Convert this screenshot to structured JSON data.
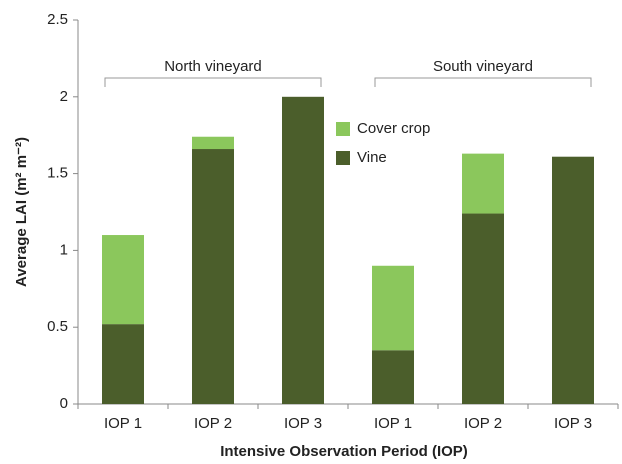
{
  "chart_data": {
    "type": "stacked_bar",
    "x_label": "Intensive Observation Period (IOP)",
    "y_label": "Average LAI (m² m⁻²)",
    "categories": [
      "IOP 1",
      "IOP 2",
      "IOP 3",
      "IOP 1",
      "IOP 2",
      "IOP 3"
    ],
    "series": [
      {
        "name": "Vine",
        "color": "#4b5e2b",
        "values": [
          0.52,
          1.66,
          2.0,
          0.35,
          1.24,
          1.61
        ]
      },
      {
        "name": "Cover crop",
        "color": "#8bc75c",
        "values": [
          0.58,
          0.08,
          0,
          0.55,
          0.39,
          0
        ]
      }
    ],
    "annotations": [
      "North vineyard",
      "South vineyard"
    ],
    "ylim": [
      0,
      2.5
    ],
    "yticks": [
      0,
      0.5,
      1,
      1.5,
      2,
      2.5
    ],
    "grid": false,
    "legend": "center"
  }
}
